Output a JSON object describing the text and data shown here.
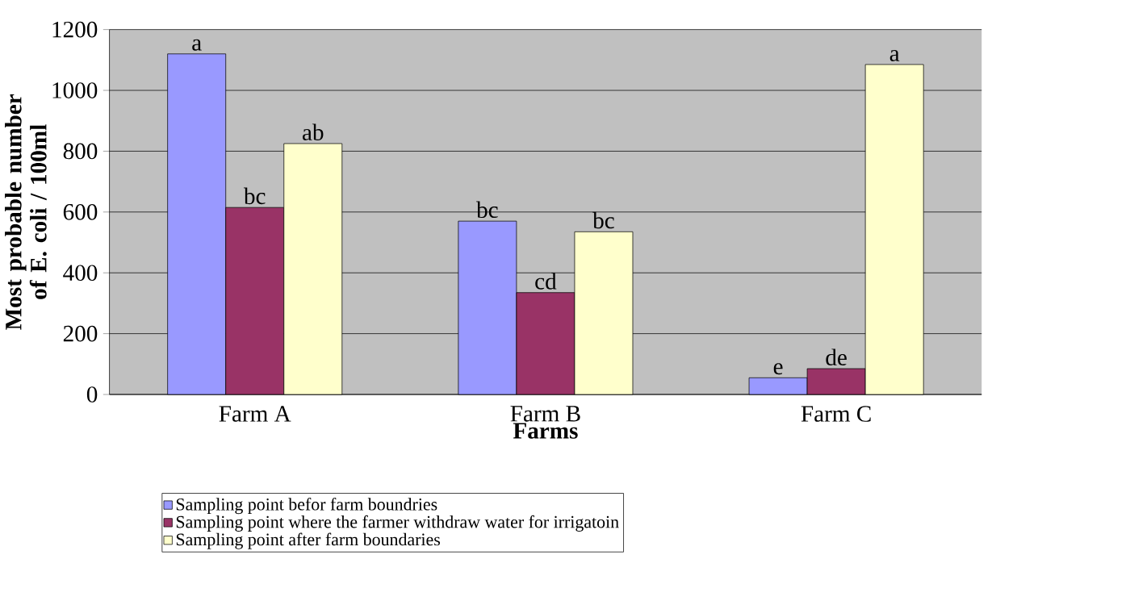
{
  "chart_data": {
    "type": "bar",
    "categories": [
      "Farm A",
      "Farm B",
      "Farm C"
    ],
    "xlabel": "Farms",
    "ylabel": "Most probable number of E. coli / 100ml",
    "series": [
      {
        "name": "Sampling point befor farm boundries",
        "color": "#9999ff",
        "values": [
          1120,
          570,
          55
        ]
      },
      {
        "name": "Sampling point where the farmer withdraw water for irrigatoin",
        "color": "#993366",
        "values": [
          615,
          335,
          85
        ]
      },
      {
        "name": "Sampling point after farm boundaries",
        "color": "#ffffcc",
        "values": [
          825,
          535,
          1085
        ]
      }
    ],
    "ylim": [
      0,
      1200
    ],
    "yticks": [
      0,
      200,
      400,
      600,
      800,
      1000,
      1200
    ],
    "grid": "y",
    "legend": "bottom",
    "annotations": [
      "a",
      "bc",
      "ab",
      "bc",
      "cd",
      "bc",
      "e",
      "de",
      "a"
    ]
  }
}
